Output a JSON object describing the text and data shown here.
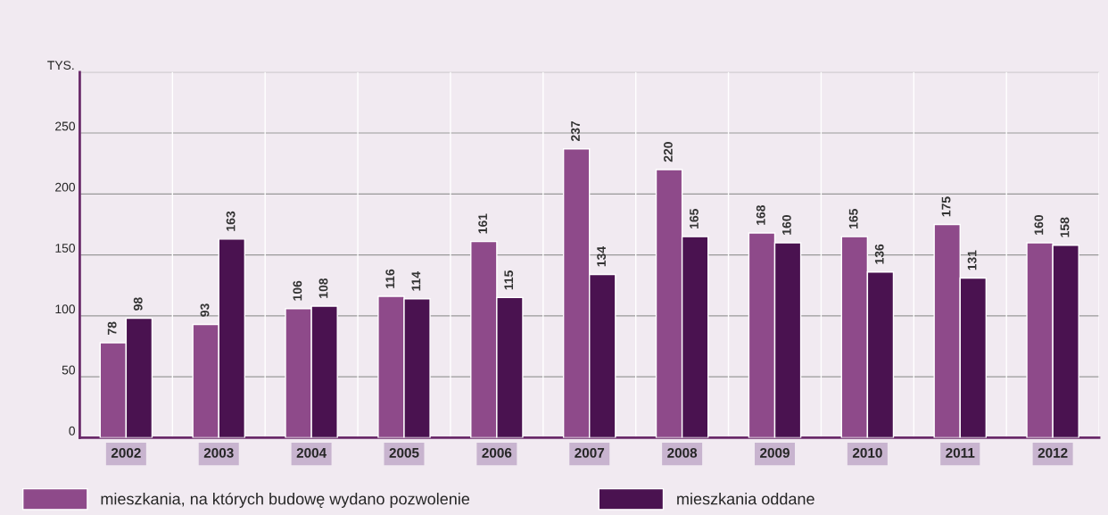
{
  "chart_data": {
    "type": "bar",
    "ylabel": "TYS.",
    "categories": [
      "2002",
      "2003",
      "2004",
      "2005",
      "2006",
      "2007",
      "2008",
      "2009",
      "2010",
      "2011",
      "2012"
    ],
    "series": [
      {
        "name": "mieszkania, na których budowę wydano pozwolenie",
        "color": "#8e4a8a",
        "values": [
          78,
          93,
          106,
          116,
          161,
          237,
          220,
          168,
          165,
          175,
          160
        ]
      },
      {
        "name": "mieszkania oddane",
        "color": "#4a1250",
        "values": [
          98,
          163,
          108,
          114,
          115,
          134,
          165,
          160,
          136,
          131,
          158
        ]
      }
    ],
    "ylim": [
      0,
      300
    ],
    "yticks": [
      0,
      50,
      100,
      150,
      200,
      250,
      {
        "value": 300,
        "label": null
      }
    ],
    "grid": "y",
    "legend": "bottom",
    "data_labels": true
  }
}
